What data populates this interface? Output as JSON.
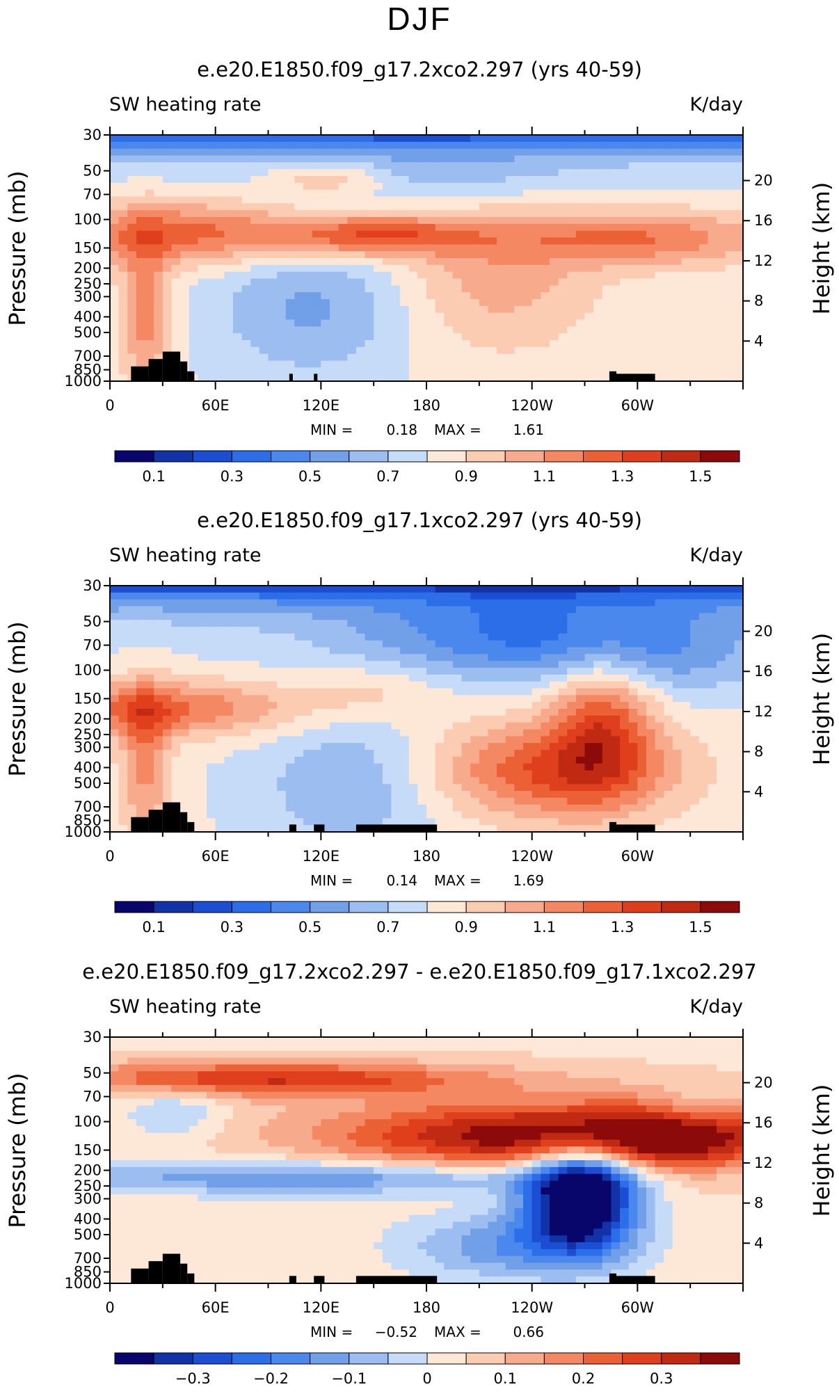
{
  "page_title": "DJF",
  "chart_data": [
    {
      "type": "heatmap",
      "title": "e.e20.E1850.f09_g17.2xco2.297 (yrs 40-59)",
      "left_label": "SW heating rate",
      "right_label": "K/day",
      "ylabel": "Pressure (mb)",
      "ylabel2": "Height (km)",
      "x_ticks": [
        "0",
        "60E",
        "120E",
        "180",
        "120W",
        "60W"
      ],
      "x_tick_lon": [
        0,
        60,
        120,
        180,
        240,
        300
      ],
      "xlim": [
        0,
        360
      ],
      "y_ticks": [
        "30",
        "50",
        "70",
        "100",
        "150",
        "200",
        "250",
        "300",
        "400",
        "500",
        "700",
        "850",
        "1000"
      ],
      "y_tick_values": [
        30,
        50,
        70,
        100,
        150,
        200,
        250,
        300,
        400,
        500,
        700,
        850,
        1000
      ],
      "ylim": [
        1000,
        30
      ],
      "height_ticks": [
        "20",
        "16",
        "12",
        "8",
        "4"
      ],
      "height_values": [
        20,
        16,
        12,
        8,
        4
      ],
      "min_label": "MIN =",
      "min_value": "0.18",
      "max_label": "MAX =",
      "max_value": "1.61",
      "colorbar_labels": [
        "0.1",
        "0.3",
        "0.5",
        "0.7",
        "0.9",
        "1.1",
        "1.3",
        "1.5"
      ],
      "colorbar_label_index": [
        1,
        3,
        5,
        7,
        9,
        11,
        13,
        15
      ],
      "colorbar_levels": [
        0,
        0.1,
        0.2,
        0.3,
        0.4,
        0.5,
        0.6,
        0.7,
        0.8,
        0.9,
        1.0,
        1.1,
        1.2,
        1.3,
        1.4,
        1.5,
        1.6
      ]
    },
    {
      "type": "heatmap",
      "title": "e.e20.E1850.f09_g17.1xco2.297 (yrs 40-59)",
      "left_label": "SW heating rate",
      "right_label": "K/day",
      "ylabel": "Pressure (mb)",
      "ylabel2": "Height (km)",
      "x_ticks": [
        "0",
        "60E",
        "120E",
        "180",
        "120W",
        "60W"
      ],
      "x_tick_lon": [
        0,
        60,
        120,
        180,
        240,
        300
      ],
      "xlim": [
        0,
        360
      ],
      "y_ticks": [
        "30",
        "50",
        "70",
        "100",
        "150",
        "200",
        "250",
        "300",
        "400",
        "500",
        "700",
        "850",
        "1000"
      ],
      "y_tick_values": [
        30,
        50,
        70,
        100,
        150,
        200,
        250,
        300,
        400,
        500,
        700,
        850,
        1000
      ],
      "ylim": [
        1000,
        30
      ],
      "height_ticks": [
        "20",
        "16",
        "12",
        "8",
        "4"
      ],
      "height_values": [
        20,
        16,
        12,
        8,
        4
      ],
      "min_label": "MIN =",
      "min_value": "0.14",
      "max_label": "MAX =",
      "max_value": "1.69",
      "colorbar_labels": [
        "0.1",
        "0.3",
        "0.5",
        "0.7",
        "0.9",
        "1.1",
        "1.3",
        "1.5"
      ],
      "colorbar_label_index": [
        1,
        3,
        5,
        7,
        9,
        11,
        13,
        15
      ],
      "colorbar_levels": [
        0,
        0.1,
        0.2,
        0.3,
        0.4,
        0.5,
        0.6,
        0.7,
        0.8,
        0.9,
        1.0,
        1.1,
        1.2,
        1.3,
        1.4,
        1.5,
        1.6
      ]
    },
    {
      "type": "heatmap",
      "title": "e.e20.E1850.f09_g17.2xco2.297 - e.e20.E1850.f09_g17.1xco2.297",
      "left_label": "SW heating rate",
      "right_label": "K/day",
      "ylabel": "Pressure (mb)",
      "ylabel2": "Height (km)",
      "x_ticks": [
        "0",
        "60E",
        "120E",
        "180",
        "120W",
        "60W"
      ],
      "x_tick_lon": [
        0,
        60,
        120,
        180,
        240,
        300
      ],
      "xlim": [
        0,
        360
      ],
      "y_ticks": [
        "30",
        "50",
        "70",
        "100",
        "150",
        "200",
        "250",
        "300",
        "400",
        "500",
        "700",
        "850",
        "1000"
      ],
      "y_tick_values": [
        30,
        50,
        70,
        100,
        150,
        200,
        250,
        300,
        400,
        500,
        700,
        850,
        1000
      ],
      "ylim": [
        1000,
        30
      ],
      "height_ticks": [
        "20",
        "16",
        "12",
        "8",
        "4"
      ],
      "height_values": [
        20,
        16,
        12,
        8,
        4
      ],
      "min_label": "MIN =",
      "min_value": "−0.52",
      "max_label": "MAX =",
      "max_value": "0.66",
      "colorbar_labels": [
        "−0.3",
        "−0.2",
        "−0.1",
        "0",
        "0.1",
        "0.2",
        "0.3"
      ],
      "colorbar_label_index": [
        2,
        4,
        6,
        8,
        10,
        12,
        14
      ],
      "colorbar_levels": [
        -0.4,
        -0.35,
        -0.3,
        -0.25,
        -0.2,
        -0.15,
        -0.1,
        -0.05,
        0,
        0.05,
        0.1,
        0.15,
        0.2,
        0.25,
        0.3,
        0.35,
        0.4
      ]
    }
  ],
  "colors": {
    "colormap": [
      "#08066b",
      "#1232a8",
      "#1c4ed4",
      "#2c6ee8",
      "#4a88ee",
      "#719fe8",
      "#9cbdef",
      "#c6dbf7",
      "#fde8d8",
      "#fbcbb2",
      "#f8ab8c",
      "#f38862",
      "#ec6035",
      "#df3f1d",
      "#c02a13",
      "#8c0a0a"
    ],
    "topography": "#000000",
    "frame": "#000000"
  }
}
